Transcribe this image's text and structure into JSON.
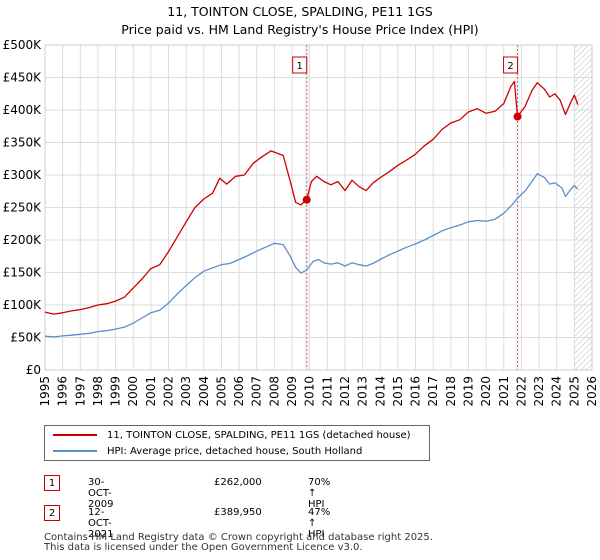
{
  "chart_data": {
    "type": "line",
    "title": "11, TOINTON CLOSE, SPALDING, PE11 1GS",
    "subtitle": "Price paid vs. HM Land Registry's House Price Index (HPI)",
    "xlabel": "",
    "ylabel": "",
    "xlim": [
      1995,
      2026
    ],
    "ylim": [
      0,
      500000
    ],
    "x_ticks": [
      "1995",
      "1996",
      "1997",
      "1998",
      "1999",
      "2000",
      "2001",
      "2002",
      "2003",
      "2004",
      "2005",
      "2006",
      "2007",
      "2008",
      "2009",
      "2010",
      "2011",
      "2012",
      "2013",
      "2014",
      "2015",
      "2016",
      "2017",
      "2018",
      "2019",
      "2020",
      "2021",
      "2022",
      "2023",
      "2024",
      "2025",
      "2026"
    ],
    "y_ticks": [
      {
        "value": 0,
        "label": "£0"
      },
      {
        "value": 50000,
        "label": "£50K"
      },
      {
        "value": 100000,
        "label": "£100K"
      },
      {
        "value": 150000,
        "label": "£150K"
      },
      {
        "value": 200000,
        "label": "£200K"
      },
      {
        "value": 250000,
        "label": "£250K"
      },
      {
        "value": 300000,
        "label": "£300K"
      },
      {
        "value": 350000,
        "label": "£350K"
      },
      {
        "value": 400000,
        "label": "£400K"
      },
      {
        "value": 450000,
        "label": "£450K"
      },
      {
        "value": 500000,
        "label": "£500K"
      }
    ],
    "grid": true,
    "hatched_future_from": 2025.0,
    "series": [
      {
        "name": "11, TOINTON CLOSE, SPALDING, PE11 1GS (detached house)",
        "color": "#cc0000",
        "points": [
          [
            1995.0,
            89000
          ],
          [
            1995.5,
            86000
          ],
          [
            1996.0,
            88000
          ],
          [
            1996.5,
            91000
          ],
          [
            1997.0,
            93000
          ],
          [
            1997.5,
            96000
          ],
          [
            1998.0,
            100000
          ],
          [
            1998.5,
            102000
          ],
          [
            1999.0,
            106000
          ],
          [
            1999.5,
            112000
          ],
          [
            2000.0,
            126000
          ],
          [
            2000.5,
            140000
          ],
          [
            2001.0,
            156000
          ],
          [
            2001.5,
            162000
          ],
          [
            2002.0,
            182000
          ],
          [
            2002.5,
            205000
          ],
          [
            2003.0,
            228000
          ],
          [
            2003.5,
            250000
          ],
          [
            2004.0,
            263000
          ],
          [
            2004.5,
            272000
          ],
          [
            2004.9,
            295000
          ],
          [
            2005.3,
            286000
          ],
          [
            2005.8,
            298000
          ],
          [
            2006.3,
            300000
          ],
          [
            2006.8,
            318000
          ],
          [
            2007.3,
            328000
          ],
          [
            2007.8,
            337000
          ],
          [
            2008.2,
            333000
          ],
          [
            2008.5,
            330000
          ],
          [
            2008.9,
            290000
          ],
          [
            2009.2,
            258000
          ],
          [
            2009.5,
            254000
          ],
          [
            2009.83,
            262000
          ],
          [
            2010.1,
            290000
          ],
          [
            2010.4,
            298000
          ],
          [
            2010.8,
            290000
          ],
          [
            2011.2,
            285000
          ],
          [
            2011.6,
            290000
          ],
          [
            2012.0,
            276000
          ],
          [
            2012.4,
            292000
          ],
          [
            2012.8,
            282000
          ],
          [
            2013.2,
            276000
          ],
          [
            2013.6,
            288000
          ],
          [
            2014.0,
            296000
          ],
          [
            2014.5,
            305000
          ],
          [
            2015.0,
            315000
          ],
          [
            2015.5,
            323000
          ],
          [
            2016.0,
            332000
          ],
          [
            2016.5,
            345000
          ],
          [
            2017.0,
            355000
          ],
          [
            2017.5,
            370000
          ],
          [
            2018.0,
            380000
          ],
          [
            2018.5,
            385000
          ],
          [
            2019.0,
            397000
          ],
          [
            2019.5,
            402000
          ],
          [
            2020.0,
            395000
          ],
          [
            2020.5,
            398000
          ],
          [
            2021.0,
            410000
          ],
          [
            2021.4,
            436000
          ],
          [
            2021.6,
            444000
          ],
          [
            2021.78,
            389950
          ],
          [
            2022.2,
            405000
          ],
          [
            2022.6,
            430000
          ],
          [
            2022.9,
            442000
          ],
          [
            2023.3,
            432000
          ],
          [
            2023.6,
            420000
          ],
          [
            2023.9,
            425000
          ],
          [
            2024.2,
            415000
          ],
          [
            2024.5,
            393000
          ],
          [
            2024.8,
            412000
          ],
          [
            2025.0,
            423000
          ],
          [
            2025.2,
            408000
          ]
        ]
      },
      {
        "name": "HPI: Average price, detached house, South Holland",
        "color": "#5b8fcc",
        "points": [
          [
            1995.0,
            52000
          ],
          [
            1995.5,
            51000
          ],
          [
            1996.0,
            52500
          ],
          [
            1996.5,
            53500
          ],
          [
            1997.0,
            55000
          ],
          [
            1997.5,
            56500
          ],
          [
            1998.0,
            59000
          ],
          [
            1998.5,
            60500
          ],
          [
            1999.0,
            63000
          ],
          [
            1999.5,
            66000
          ],
          [
            2000.0,
            72000
          ],
          [
            2000.5,
            80000
          ],
          [
            2001.0,
            88000
          ],
          [
            2001.5,
            92000
          ],
          [
            2002.0,
            103000
          ],
          [
            2002.5,
            117000
          ],
          [
            2003.0,
            130000
          ],
          [
            2003.5,
            142000
          ],
          [
            2004.0,
            152000
          ],
          [
            2004.5,
            157000
          ],
          [
            2005.0,
            162000
          ],
          [
            2005.5,
            164000
          ],
          [
            2006.0,
            170000
          ],
          [
            2006.5,
            176000
          ],
          [
            2007.0,
            183000
          ],
          [
            2007.5,
            189000
          ],
          [
            2008.0,
            195000
          ],
          [
            2008.5,
            193000
          ],
          [
            2008.9,
            175000
          ],
          [
            2009.2,
            158000
          ],
          [
            2009.5,
            149000
          ],
          [
            2009.83,
            154000
          ],
          [
            2010.2,
            167000
          ],
          [
            2010.5,
            170000
          ],
          [
            2010.8,
            165000
          ],
          [
            2011.2,
            163000
          ],
          [
            2011.6,
            165000
          ],
          [
            2012.0,
            160000
          ],
          [
            2012.4,
            165000
          ],
          [
            2012.8,
            162000
          ],
          [
            2013.2,
            160000
          ],
          [
            2013.6,
            164000
          ],
          [
            2014.0,
            170000
          ],
          [
            2014.5,
            177000
          ],
          [
            2015.0,
            183000
          ],
          [
            2015.5,
            189000
          ],
          [
            2016.0,
            194000
          ],
          [
            2016.5,
            200000
          ],
          [
            2017.0,
            207000
          ],
          [
            2017.5,
            214000
          ],
          [
            2018.0,
            219000
          ],
          [
            2018.5,
            223000
          ],
          [
            2019.0,
            228000
          ],
          [
            2019.5,
            230000
          ],
          [
            2020.0,
            229000
          ],
          [
            2020.5,
            232000
          ],
          [
            2021.0,
            241000
          ],
          [
            2021.5,
            255000
          ],
          [
            2021.78,
            264500
          ],
          [
            2022.2,
            275000
          ],
          [
            2022.6,
            290000
          ],
          [
            2022.9,
            302000
          ],
          [
            2023.3,
            296000
          ],
          [
            2023.6,
            286000
          ],
          [
            2023.9,
            288000
          ],
          [
            2024.3,
            280000
          ],
          [
            2024.5,
            267000
          ],
          [
            2024.8,
            278000
          ],
          [
            2025.0,
            284000
          ],
          [
            2025.2,
            278000
          ]
        ]
      }
    ],
    "markers": [
      {
        "label": "1",
        "x": 2009.83,
        "y": 262000
      },
      {
        "label": "2",
        "x": 2021.78,
        "y": 389950
      }
    ]
  },
  "legend": {
    "property_label": "11, TOINTON CLOSE, SPALDING, PE11 1GS (detached house)",
    "hpi_label": "HPI: Average price, detached house, South Holland"
  },
  "sales": [
    {
      "num": "1",
      "date": "30-OCT-2009",
      "price": "£262,000",
      "hpi": "70% ↑ HPI"
    },
    {
      "num": "2",
      "date": "12-OCT-2021",
      "price": "£389,950",
      "hpi": "47% ↑ HPI"
    }
  ],
  "footer": {
    "line1": "Contains HM Land Registry data © Crown copyright and database right 2025.",
    "line2": "This data is licensed under the Open Government Licence v3.0."
  }
}
